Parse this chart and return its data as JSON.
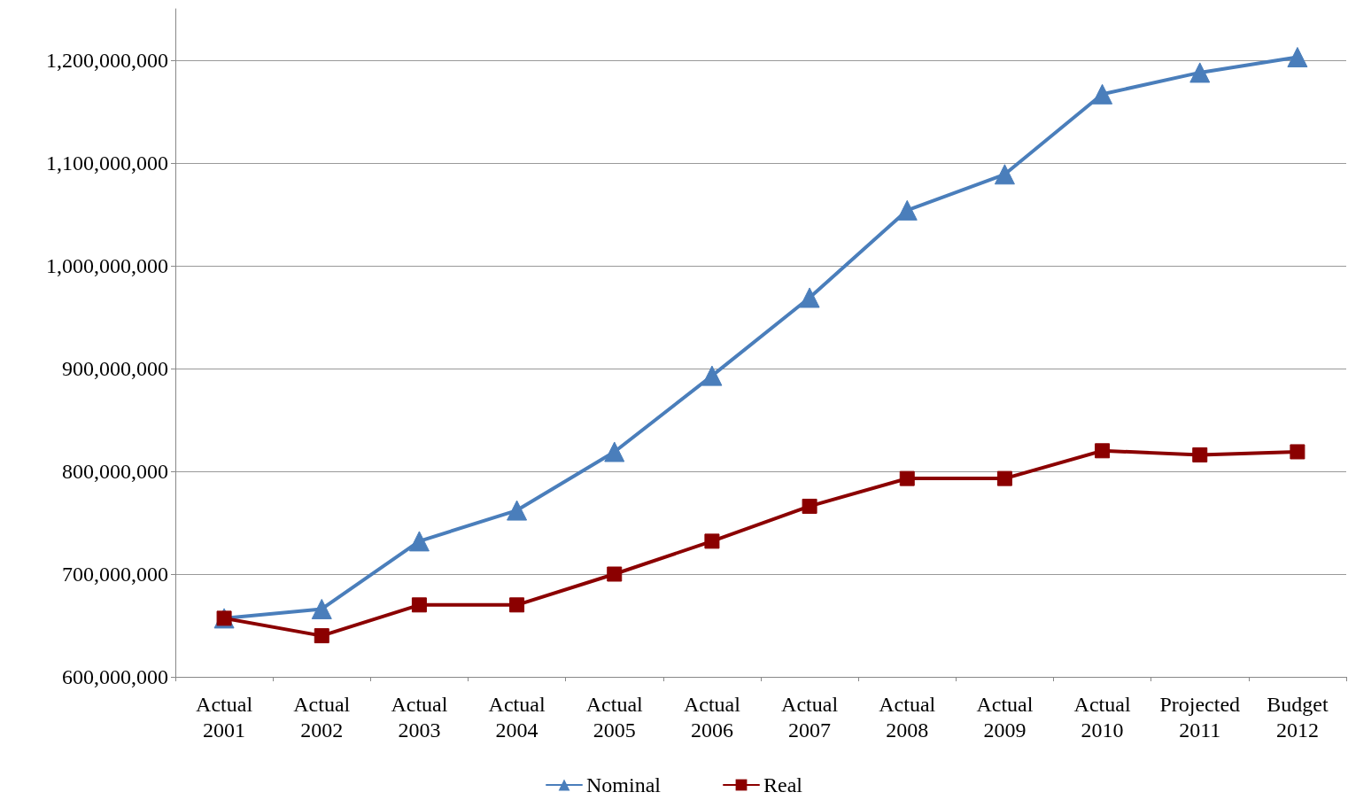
{
  "chart_data": {
    "type": "line",
    "categories": [
      "Actual\n2001",
      "Actual\n2002",
      "Actual\n2003",
      "Actual\n2004",
      "Actual\n2005",
      "Actual\n2006",
      "Actual\n2007",
      "Actual\n2008",
      "Actual\n2009",
      "Actual\n2010",
      "Projected\n2011",
      "Budget\n2012"
    ],
    "series": [
      {
        "name": "Nominal",
        "color": "#4a7ebb",
        "marker": "triangle",
        "values": [
          657000000,
          666000000,
          732000000,
          762000000,
          819000000,
          893000000,
          969000000,
          1054000000,
          1089000000,
          1167000000,
          1188000000,
          1203000000
        ]
      },
      {
        "name": "Real",
        "color": "#8b0000",
        "marker": "square",
        "values": [
          657000000,
          640000000,
          670000000,
          670000000,
          700000000,
          732000000,
          766000000,
          793000000,
          793000000,
          820000000,
          816000000,
          819000000
        ]
      }
    ],
    "ylim": [
      600000000,
      1250000000
    ],
    "yticks": [
      {
        "value": 600000000,
        "label": "600,000,000"
      },
      {
        "value": 700000000,
        "label": "700,000,000"
      },
      {
        "value": 800000000,
        "label": "800,000,000"
      },
      {
        "value": 900000000,
        "label": "900,000,000"
      },
      {
        "value": 1000000000,
        "label": "1,000,000,000"
      },
      {
        "value": 1100000000,
        "label": "1,100,000,000"
      },
      {
        "value": 1200000000,
        "label": "1,200,000,000"
      }
    ],
    "grid": "y",
    "legend": "bottom",
    "line_style": "solid"
  }
}
